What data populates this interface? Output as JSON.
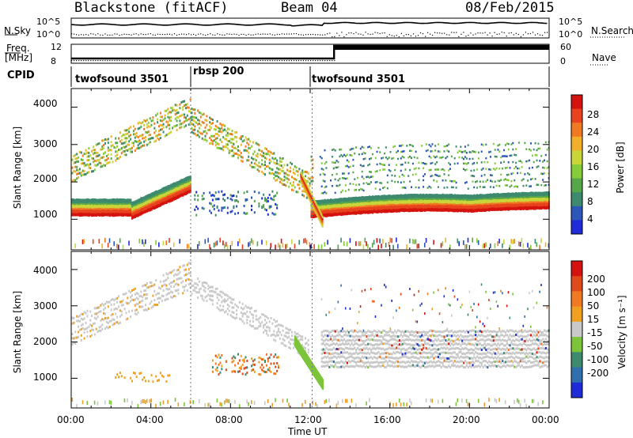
{
  "header": {
    "station": "Blackstone (fitACF)",
    "beam": "Beam 04",
    "date": "08/Feb/2015"
  },
  "top_panels": {
    "nsky_label": "N.Sky",
    "nsearch_label": "N.Search",
    "noise_ticks": [
      "10^5",
      "10^0"
    ],
    "freq_label_line1": "Freq.",
    "freq_label_line2": "[MHz]",
    "freq_ticks": [
      "12",
      "8"
    ],
    "nave_label": "Nave",
    "nave_ticks": [
      "60",
      "0"
    ],
    "cpid_label": "CPID",
    "cpid_segments": [
      {
        "name": "twofsound 3501",
        "start_h": 0.0,
        "end_h": 6.0
      },
      {
        "name": "rbsp 200",
        "start_h": 6.0,
        "end_h": 12.0
      },
      {
        "name": "twofsound 3501",
        "start_h": 12.0,
        "end_h": 24.0
      }
    ]
  },
  "chart_data": [
    {
      "type": "heatmap",
      "panel": "power",
      "ylabel": "Slant Range [km]",
      "y_ticks": [
        "1000",
        "2000",
        "3000",
        "4000"
      ],
      "ylim": [
        180,
        4500
      ],
      "colorbar_label": "Power [dB]",
      "colorbar_ticks": [
        "4",
        "8",
        "12",
        "16",
        "20",
        "24",
        "28"
      ],
      "colorbar_range": [
        0,
        30
      ],
      "colors": [
        "#1f2bd6",
        "#2c57b8",
        "#3d8a6e",
        "#56a64a",
        "#86cc3a",
        "#c8d63a",
        "#f2b02a",
        "#f07a22",
        "#e8431e",
        "#d4120e"
      ]
    },
    {
      "type": "heatmap",
      "panel": "velocity",
      "ylabel": "Slant Range [km]",
      "y_ticks": [
        "1000",
        "2000",
        "3000",
        "4000"
      ],
      "ylim": [
        180,
        4500
      ],
      "colorbar_label": "Velocity [m s⁻¹]",
      "colorbar_ticks": [
        "200",
        "100",
        "50",
        "15",
        "-15",
        "-50",
        "-100",
        "-200"
      ],
      "colorbar_range": [
        -250,
        250
      ],
      "colors": [
        "#1f2bd6",
        "#2f6fae",
        "#3d8a6e",
        "#7cc43a",
        "#c9c9c9",
        "#f0a020",
        "#f07a22",
        "#e04a1a",
        "#d4120e"
      ]
    }
  ],
  "x_axis": {
    "label": "Time UT",
    "ticks": [
      "00:00",
      "04:00",
      "08:00",
      "12:00",
      "16:00",
      "20:00",
      "00:00"
    ],
    "range_hours": [
      0,
      24
    ]
  }
}
